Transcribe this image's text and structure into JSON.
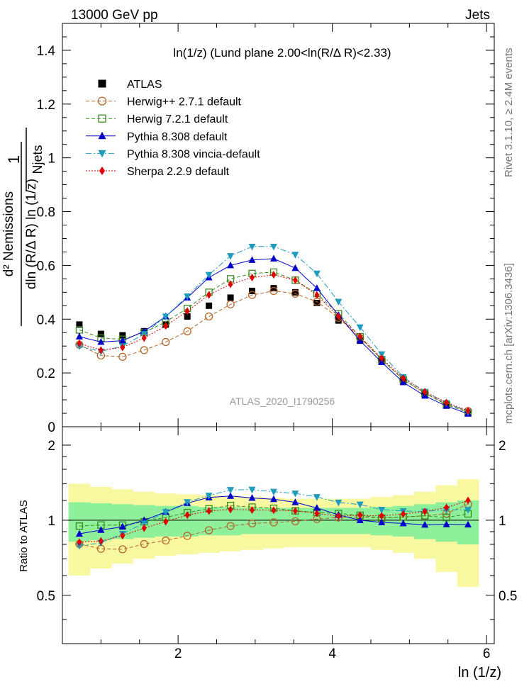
{
  "header": {
    "left": "13000 GeV pp",
    "right": "Jets"
  },
  "side_labels": {
    "rivet": "Rivet 3.1.10, ≥ 2.4M events",
    "mcplots": "mcplots.cern.ch [arXiv:1306.3436]"
  },
  "chart_data": {
    "type": "line",
    "title": "ln(1/z) (Lund plane 2.00<ln(R/Δ R)<2.33)",
    "watermark": "ATLAS_2020_I1790256",
    "xlabel": "ln (1/z)",
    "ylabel": "1/N_jets d²N_emissions / dln(R/Δ R) ln(1/z)",
    "ratio_ylabel": "Ratio to ATLAS",
    "xlim": [
      0.5,
      6.1
    ],
    "ylim": [
      0,
      1.5
    ],
    "ratio_ylim": [
      0.32,
      2.37
    ],
    "xticks": [
      2,
      4,
      6
    ],
    "yticks": [
      "0",
      "0.2",
      "0.4",
      "0.6",
      "0.8",
      "1",
      "1.2",
      "1.4"
    ],
    "ratio_yticks": [
      "0.5",
      "1",
      "2"
    ],
    "legend_position": "top-left",
    "x": [
      0.72,
      1.0,
      1.28,
      1.56,
      1.84,
      2.12,
      2.4,
      2.68,
      2.96,
      3.24,
      3.52,
      3.8,
      4.08,
      4.36,
      4.64,
      4.92,
      5.2,
      5.48,
      5.76
    ],
    "series": [
      {
        "name": "ATLAS",
        "color": "#000000",
        "marker": "square",
        "line": "none",
        "values": [
          0.38,
          0.345,
          0.34,
          0.355,
          0.38,
          0.41,
          0.45,
          0.48,
          0.505,
          0.515,
          0.5,
          0.46,
          0.395,
          0.32,
          0.245,
          0.17,
          0.12,
          0.08,
          0.05
        ]
      },
      {
        "name": "Herwig++ 2.7.1 default",
        "color": "#b5652a",
        "marker": "circle-open",
        "line": "dashed",
        "values": [
          0.305,
          0.265,
          0.26,
          0.285,
          0.315,
          0.355,
          0.41,
          0.455,
          0.49,
          0.505,
          0.495,
          0.465,
          0.405,
          0.33,
          0.25,
          0.175,
          0.125,
          0.085,
          0.058
        ]
      },
      {
        "name": "Herwig 7.2.1 default",
        "color": "#3a8c1f",
        "marker": "square-open",
        "line": "dashed",
        "values": [
          0.36,
          0.33,
          0.325,
          0.35,
          0.39,
          0.44,
          0.5,
          0.55,
          0.57,
          0.575,
          0.545,
          0.495,
          0.42,
          0.335,
          0.25,
          0.175,
          0.125,
          0.082,
          0.053
        ]
      },
      {
        "name": "Pythia 8.308 default",
        "color": "#0000cc",
        "marker": "triangle-up",
        "line": "solid",
        "values": [
          0.335,
          0.315,
          0.32,
          0.355,
          0.41,
          0.48,
          0.555,
          0.6,
          0.62,
          0.625,
          0.59,
          0.515,
          0.415,
          0.32,
          0.24,
          0.165,
          0.115,
          0.077,
          0.048
        ]
      },
      {
        "name": "Pythia 8.308 vincia-default",
        "color": "#1e9bbd",
        "marker": "triangle-down",
        "line": "dashdot",
        "values": [
          0.3,
          0.28,
          0.3,
          0.345,
          0.41,
          0.485,
          0.565,
          0.635,
          0.67,
          0.67,
          0.64,
          0.57,
          0.465,
          0.37,
          0.27,
          0.185,
          0.13,
          0.088,
          0.055
        ]
      },
      {
        "name": "Sherpa 2.2.9 default",
        "color": "#e00000",
        "marker": "diamond",
        "line": "dotted",
        "values": [
          0.31,
          0.285,
          0.295,
          0.33,
          0.375,
          0.43,
          0.49,
          0.53,
          0.555,
          0.565,
          0.545,
          0.49,
          0.41,
          0.335,
          0.255,
          0.18,
          0.13,
          0.09,
          0.06
        ]
      }
    ],
    "ratio_bands": {
      "inner_color": "#8ef09a",
      "outer_color": "#f8f8a0",
      "inner_half_widths": [
        0.18,
        0.17,
        0.16,
        0.15,
        0.14,
        0.14,
        0.13,
        0.13,
        0.12,
        0.12,
        0.12,
        0.12,
        0.12,
        0.12,
        0.13,
        0.14,
        0.16,
        0.18,
        0.2
      ],
      "outer_half_widths": [
        0.4,
        0.36,
        0.33,
        0.3,
        0.28,
        0.27,
        0.26,
        0.25,
        0.24,
        0.23,
        0.22,
        0.22,
        0.22,
        0.22,
        0.24,
        0.26,
        0.3,
        0.38,
        0.46
      ]
    }
  }
}
